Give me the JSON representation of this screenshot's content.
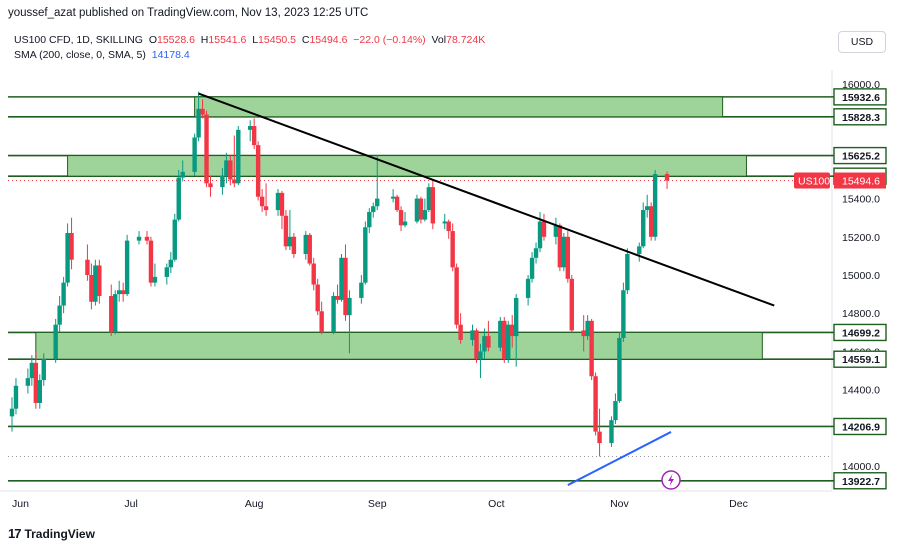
{
  "header": {
    "published_by": "youssef_azat published on TradingView.com, Nov 13, 2023 12:25 UTC"
  },
  "legend": {
    "symbol_line": "US100 CFD, 1D, SKILLING",
    "o_label": "O",
    "o_value": "15528.6",
    "h_label": "H",
    "h_value": "15541.6",
    "l_label": "L",
    "l_value": "15450.5",
    "c_label": "C",
    "c_value": "15494.6",
    "change": "−22.0 (−0.14%)",
    "vol_label": "Vol",
    "vol_value": "78.724K",
    "sma_label": "SMA (200, close, 0, SMA, 5)",
    "sma_value": "14178.4"
  },
  "currency_button": "USD",
  "footer": {
    "brand": "TradingView",
    "logo": "17"
  },
  "colors": {
    "up": "#089981",
    "down": "#f23645",
    "zone_fill": "#9ed49a",
    "zone_stroke": "#1e5e1e",
    "trendline": "#000000",
    "sma": "#2962ff",
    "price_tag": "#f23645"
  },
  "chart_data": {
    "type": "candlestick",
    "symbol": "US100",
    "ylim": [
      13900,
      16000
    ],
    "y_ticks": [
      "16000.0",
      "15400.0",
      "15200.0",
      "15000.0",
      "14800.0",
      "14600.0",
      "14400.0",
      "14000.0"
    ],
    "x_ticks": [
      "Jun",
      "Jul",
      "Aug",
      "Sep",
      "Oct",
      "Nov",
      "Dec"
    ],
    "horizontal_levels": [
      "15932.6",
      "15828.3",
      "15625.2",
      "15517.4",
      "14699.2",
      "14559.1",
      "14206.9",
      "13922.7"
    ],
    "current_price_label": "US100",
    "current_price": "15494.6",
    "zones": [
      {
        "from": 15828.3,
        "to": 15932.6,
        "start": "2023-07-17",
        "end": "2023-11-27"
      },
      {
        "from": 15517.4,
        "to": 15625.2,
        "start": "2023-06-15",
        "end": "2023-12-03"
      },
      {
        "from": 14559.1,
        "to": 14699.2,
        "start": "2023-06-07",
        "end": "2023-12-07"
      }
    ],
    "trendline": {
      "from_date": "2023-07-18",
      "from_price": 15950,
      "to_date": "2023-12-10",
      "to_price": 14840
    },
    "sma_line": {
      "from_date": "2023-10-19",
      "from_price": 13900,
      "to_date": "2023-11-14",
      "to_price": 14178.4
    },
    "candles": [
      {
        "date": "2023-06-01",
        "o": 14260,
        "h": 14360,
        "l": 14180,
        "c": 14300
      },
      {
        "date": "2023-06-02",
        "o": 14300,
        "h": 14460,
        "l": 14270,
        "c": 14420
      },
      {
        "date": "2023-06-05",
        "o": 14420,
        "h": 14510,
        "l": 14380,
        "c": 14460
      },
      {
        "date": "2023-06-06",
        "o": 14460,
        "h": 14580,
        "l": 14420,
        "c": 14540
      },
      {
        "date": "2023-06-07",
        "o": 14540,
        "h": 14600,
        "l": 14300,
        "c": 14330
      },
      {
        "date": "2023-06-08",
        "o": 14330,
        "h": 14480,
        "l": 14300,
        "c": 14450
      },
      {
        "date": "2023-06-09",
        "o": 14450,
        "h": 14590,
        "l": 14420,
        "c": 14560
      },
      {
        "date": "2023-06-12",
        "o": 14560,
        "h": 14770,
        "l": 14540,
        "c": 14740
      },
      {
        "date": "2023-06-13",
        "o": 14740,
        "h": 14890,
        "l": 14700,
        "c": 14840
      },
      {
        "date": "2023-06-14",
        "o": 14840,
        "h": 14990,
        "l": 14800,
        "c": 14960
      },
      {
        "date": "2023-06-15",
        "o": 14960,
        "h": 15270,
        "l": 14940,
        "c": 15220
      },
      {
        "date": "2023-06-16",
        "o": 15220,
        "h": 15300,
        "l": 15030,
        "c": 15080
      },
      {
        "date": "2023-06-20",
        "o": 15080,
        "h": 15160,
        "l": 14970,
        "c": 15000
      },
      {
        "date": "2023-06-21",
        "o": 15000,
        "h": 15060,
        "l": 14820,
        "c": 14860
      },
      {
        "date": "2023-06-22",
        "o": 14860,
        "h": 15080,
        "l": 14840,
        "c": 15050
      },
      {
        "date": "2023-06-23",
        "o": 15050,
        "h": 15080,
        "l": 14850,
        "c": 14890
      },
      {
        "date": "2023-06-26",
        "o": 14890,
        "h": 14950,
        "l": 14680,
        "c": 14700
      },
      {
        "date": "2023-06-27",
        "o": 14700,
        "h": 14920,
        "l": 14690,
        "c": 14900
      },
      {
        "date": "2023-06-28",
        "o": 14900,
        "h": 14970,
        "l": 14860,
        "c": 14920
      },
      {
        "date": "2023-06-29",
        "o": 14920,
        "h": 14960,
        "l": 14860,
        "c": 14900
      },
      {
        "date": "2023-06-30",
        "o": 14900,
        "h": 15210,
        "l": 14890,
        "c": 15180
      },
      {
        "date": "2023-07-03",
        "o": 15180,
        "h": 15230,
        "l": 15160,
        "c": 15200
      },
      {
        "date": "2023-07-05",
        "o": 15200,
        "h": 15230,
        "l": 15160,
        "c": 15180
      },
      {
        "date": "2023-07-06",
        "o": 15180,
        "h": 15200,
        "l": 14940,
        "c": 14960
      },
      {
        "date": "2023-07-07",
        "o": 14960,
        "h": 15060,
        "l": 14940,
        "c": 14990
      },
      {
        "date": "2023-07-10",
        "o": 14990,
        "h": 15060,
        "l": 14950,
        "c": 15040
      },
      {
        "date": "2023-07-11",
        "o": 15040,
        "h": 15120,
        "l": 15010,
        "c": 15080
      },
      {
        "date": "2023-07-12",
        "o": 15080,
        "h": 15320,
        "l": 15070,
        "c": 15290
      },
      {
        "date": "2023-07-13",
        "o": 15290,
        "h": 15550,
        "l": 15280,
        "c": 15510
      },
      {
        "date": "2023-07-14",
        "o": 15510,
        "h": 15600,
        "l": 15490,
        "c": 15540
      },
      {
        "date": "2023-07-17",
        "o": 15540,
        "h": 15740,
        "l": 15520,
        "c": 15720
      },
      {
        "date": "2023-07-18",
        "o": 15720,
        "h": 15960,
        "l": 15700,
        "c": 15870
      },
      {
        "date": "2023-07-19",
        "o": 15870,
        "h": 15920,
        "l": 15820,
        "c": 15840
      },
      {
        "date": "2023-07-20",
        "o": 15840,
        "h": 15860,
        "l": 15460,
        "c": 15480
      },
      {
        "date": "2023-07-21",
        "o": 15480,
        "h": 15520,
        "l": 15410,
        "c": 15460
      },
      {
        "date": "2023-07-24",
        "o": 15460,
        "h": 15560,
        "l": 15420,
        "c": 15520
      },
      {
        "date": "2023-07-25",
        "o": 15520,
        "h": 15640,
        "l": 15480,
        "c": 15600
      },
      {
        "date": "2023-07-26",
        "o": 15600,
        "h": 15630,
        "l": 15470,
        "c": 15500
      },
      {
        "date": "2023-07-27",
        "o": 15500,
        "h": 15730,
        "l": 15460,
        "c": 15480
      },
      {
        "date": "2023-07-28",
        "o": 15480,
        "h": 15780,
        "l": 15470,
        "c": 15760
      },
      {
        "date": "2023-07-31",
        "o": 15760,
        "h": 15810,
        "l": 15700,
        "c": 15780
      },
      {
        "date": "2023-08-01",
        "o": 15780,
        "h": 15820,
        "l": 15660,
        "c": 15680
      },
      {
        "date": "2023-08-02",
        "o": 15680,
        "h": 15700,
        "l": 15390,
        "c": 15410
      },
      {
        "date": "2023-08-03",
        "o": 15410,
        "h": 15450,
        "l": 15330,
        "c": 15360
      },
      {
        "date": "2023-08-04",
        "o": 15360,
        "h": 15480,
        "l": 15310,
        "c": 15340
      },
      {
        "date": "2023-08-07",
        "o": 15340,
        "h": 15450,
        "l": 15310,
        "c": 15430
      },
      {
        "date": "2023-08-08",
        "o": 15430,
        "h": 15440,
        "l": 15240,
        "c": 15310
      },
      {
        "date": "2023-08-09",
        "o": 15310,
        "h": 15340,
        "l": 15130,
        "c": 15150
      },
      {
        "date": "2023-08-10",
        "o": 15150,
        "h": 15340,
        "l": 15130,
        "c": 15200
      },
      {
        "date": "2023-08-11",
        "o": 15200,
        "h": 15220,
        "l": 15090,
        "c": 15110
      },
      {
        "date": "2023-08-14",
        "o": 15110,
        "h": 15230,
        "l": 15080,
        "c": 15210
      },
      {
        "date": "2023-08-15",
        "o": 15210,
        "h": 15220,
        "l": 15050,
        "c": 15060
      },
      {
        "date": "2023-08-16",
        "o": 15060,
        "h": 15090,
        "l": 14920,
        "c": 14950
      },
      {
        "date": "2023-08-17",
        "o": 14950,
        "h": 14980,
        "l": 14790,
        "c": 14810
      },
      {
        "date": "2023-08-18",
        "o": 14810,
        "h": 14860,
        "l": 14690,
        "c": 14700
      },
      {
        "date": "2023-08-21",
        "o": 14700,
        "h": 14910,
        "l": 14690,
        "c": 14890
      },
      {
        "date": "2023-08-22",
        "o": 14890,
        "h": 14950,
        "l": 14850,
        "c": 14870
      },
      {
        "date": "2023-08-23",
        "o": 14870,
        "h": 15110,
        "l": 14860,
        "c": 15090
      },
      {
        "date": "2023-08-24",
        "o": 15090,
        "h": 15160,
        "l": 14760,
        "c": 14790
      },
      {
        "date": "2023-08-25",
        "o": 14790,
        "h": 14920,
        "l": 14590,
        "c": 14880
      },
      {
        "date": "2023-08-28",
        "o": 14880,
        "h": 15000,
        "l": 14850,
        "c": 14960
      },
      {
        "date": "2023-08-29",
        "o": 14960,
        "h": 15280,
        "l": 14950,
        "c": 15250
      },
      {
        "date": "2023-08-30",
        "o": 15250,
        "h": 15350,
        "l": 15220,
        "c": 15330
      },
      {
        "date": "2023-08-31",
        "o": 15330,
        "h": 15380,
        "l": 15300,
        "c": 15360
      },
      {
        "date": "2023-09-01",
        "o": 15360,
        "h": 15630,
        "l": 15340,
        "c": 15400
      },
      {
        "date": "2023-09-05",
        "o": 15400,
        "h": 15450,
        "l": 15380,
        "c": 15410
      },
      {
        "date": "2023-09-06",
        "o": 15410,
        "h": 15420,
        "l": 15330,
        "c": 15340
      },
      {
        "date": "2023-09-07",
        "o": 15340,
        "h": 15360,
        "l": 15230,
        "c": 15260
      },
      {
        "date": "2023-09-08",
        "o": 15260,
        "h": 15330,
        "l": 15250,
        "c": 15280
      },
      {
        "date": "2023-09-11",
        "o": 15280,
        "h": 15420,
        "l": 15270,
        "c": 15400
      },
      {
        "date": "2023-09-12",
        "o": 15400,
        "h": 15410,
        "l": 15270,
        "c": 15290
      },
      {
        "date": "2023-09-13",
        "o": 15290,
        "h": 15400,
        "l": 15280,
        "c": 15340
      },
      {
        "date": "2023-09-14",
        "o": 15340,
        "h": 15480,
        "l": 15330,
        "c": 15460
      },
      {
        "date": "2023-09-15",
        "o": 15460,
        "h": 15500,
        "l": 15240,
        "c": 15270
      },
      {
        "date": "2023-09-18",
        "o": 15270,
        "h": 15320,
        "l": 15240,
        "c": 15280
      },
      {
        "date": "2023-09-19",
        "o": 15280,
        "h": 15290,
        "l": 15190,
        "c": 15230
      },
      {
        "date": "2023-09-20",
        "o": 15230,
        "h": 15270,
        "l": 15020,
        "c": 15040
      },
      {
        "date": "2023-09-21",
        "o": 15040,
        "h": 15060,
        "l": 14720,
        "c": 14740
      },
      {
        "date": "2023-09-22",
        "o": 14740,
        "h": 14800,
        "l": 14640,
        "c": 14660
      },
      {
        "date": "2023-09-25",
        "o": 14660,
        "h": 14740,
        "l": 14630,
        "c": 14710
      },
      {
        "date": "2023-09-26",
        "o": 14710,
        "h": 14720,
        "l": 14540,
        "c": 14560
      },
      {
        "date": "2023-09-27",
        "o": 14560,
        "h": 14640,
        "l": 14460,
        "c": 14600
      },
      {
        "date": "2023-09-28",
        "o": 14600,
        "h": 14720,
        "l": 14560,
        "c": 14680
      },
      {
        "date": "2023-09-29",
        "o": 14680,
        "h": 14760,
        "l": 14600,
        "c": 14620
      },
      {
        "date": "2023-10-02",
        "o": 14620,
        "h": 14780,
        "l": 14600,
        "c": 14760
      },
      {
        "date": "2023-10-03",
        "o": 14760,
        "h": 14780,
        "l": 14540,
        "c": 14560
      },
      {
        "date": "2023-10-04",
        "o": 14560,
        "h": 14760,
        "l": 14540,
        "c": 14740
      },
      {
        "date": "2023-10-05",
        "o": 14740,
        "h": 14790,
        "l": 14620,
        "c": 14680
      },
      {
        "date": "2023-10-06",
        "o": 14680,
        "h": 14900,
        "l": 14520,
        "c": 14880
      },
      {
        "date": "2023-10-09",
        "o": 14880,
        "h": 15000,
        "l": 14840,
        "c": 14980
      },
      {
        "date": "2023-10-10",
        "o": 14980,
        "h": 15120,
        "l": 14960,
        "c": 15090
      },
      {
        "date": "2023-10-11",
        "o": 15090,
        "h": 15170,
        "l": 15060,
        "c": 15140
      },
      {
        "date": "2023-10-12",
        "o": 15140,
        "h": 15330,
        "l": 15120,
        "c": 15280
      },
      {
        "date": "2023-10-13",
        "o": 15280,
        "h": 15320,
        "l": 15180,
        "c": 15200
      },
      {
        "date": "2023-10-16",
        "o": 15200,
        "h": 15300,
        "l": 15160,
        "c": 15260
      },
      {
        "date": "2023-10-17",
        "o": 15260,
        "h": 15270,
        "l": 15020,
        "c": 15040
      },
      {
        "date": "2023-10-18",
        "o": 15040,
        "h": 15220,
        "l": 15020,
        "c": 15200
      },
      {
        "date": "2023-10-19",
        "o": 15200,
        "h": 15230,
        "l": 14960,
        "c": 14980
      },
      {
        "date": "2023-10-20",
        "o": 14980,
        "h": 15000,
        "l": 14700,
        "c": 14710
      },
      {
        "date": "2023-10-23",
        "o": 14710,
        "h": 14790,
        "l": 14600,
        "c": 14680
      },
      {
        "date": "2023-10-24",
        "o": 14680,
        "h": 14790,
        "l": 14660,
        "c": 14760
      },
      {
        "date": "2023-10-25",
        "o": 14760,
        "h": 14770,
        "l": 14450,
        "c": 14470
      },
      {
        "date": "2023-10-26",
        "o": 14470,
        "h": 14490,
        "l": 14160,
        "c": 14180
      },
      {
        "date": "2023-10-27",
        "o": 14180,
        "h": 14300,
        "l": 14050,
        "c": 14120
      },
      {
        "date": "2023-10-30",
        "o": 14120,
        "h": 14260,
        "l": 14100,
        "c": 14240
      },
      {
        "date": "2023-10-31",
        "o": 14240,
        "h": 14380,
        "l": 14220,
        "c": 14340
      },
      {
        "date": "2023-11-01",
        "o": 14340,
        "h": 14700,
        "l": 14330,
        "c": 14670
      },
      {
        "date": "2023-11-02",
        "o": 14670,
        "h": 14960,
        "l": 14650,
        "c": 14920
      },
      {
        "date": "2023-11-03",
        "o": 14920,
        "h": 15140,
        "l": 14900,
        "c": 15110
      },
      {
        "date": "2023-11-06",
        "o": 15110,
        "h": 15170,
        "l": 15070,
        "c": 15150
      },
      {
        "date": "2023-11-07",
        "o": 15150,
        "h": 15380,
        "l": 15140,
        "c": 15340
      },
      {
        "date": "2023-11-08",
        "o": 15340,
        "h": 15420,
        "l": 15300,
        "c": 15360
      },
      {
        "date": "2023-11-09",
        "o": 15360,
        "h": 15380,
        "l": 15180,
        "c": 15200
      },
      {
        "date": "2023-11-10",
        "o": 15200,
        "h": 15550,
        "l": 15180,
        "c": 15528.6
      },
      {
        "date": "2023-11-13",
        "o": 15528.6,
        "h": 15541.6,
        "l": 15450.5,
        "c": 15494.6
      }
    ]
  }
}
